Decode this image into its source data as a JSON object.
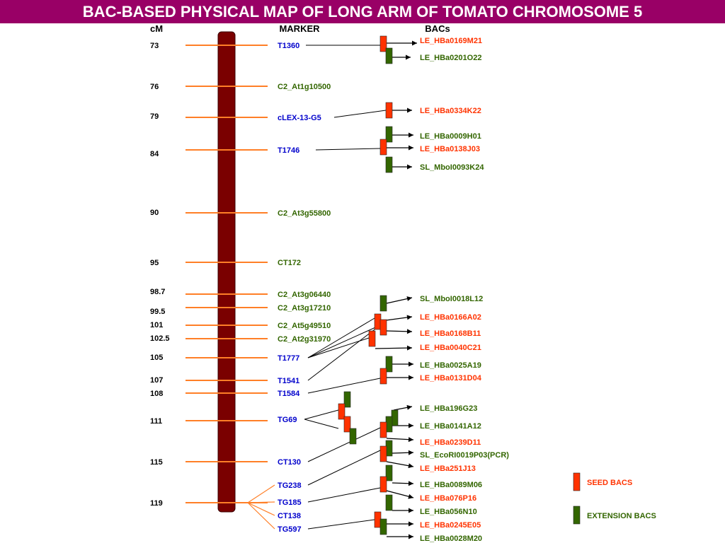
{
  "title": "BAC-BASED PHYSICAL MAP OF LONG ARM OF TOMATO CHROMOSOME 5",
  "headers": {
    "cm": "cM",
    "marker": "MARKER",
    "bacs": "BACs"
  },
  "colors": {
    "title_bg": "#990066",
    "chromosome": "#7a0000",
    "tick": "#ff7f27",
    "blue_marker": "#0000cc",
    "green_marker": "#336600",
    "seed": "#ff3300",
    "extension": "#336600",
    "red_label": "#ff3300"
  },
  "cm_positions": [
    "73",
    "76",
    "79",
    "84",
    "90",
    "95",
    "98.7",
    "99.5",
    "101",
    "102.5",
    "105",
    "107",
    "108",
    "111",
    "115",
    "119"
  ],
  "markers": [
    {
      "name": "T1360",
      "color": "blue"
    },
    {
      "name": "C2_At1g10500",
      "color": "green"
    },
    {
      "name": "cLEX-13-G5",
      "color": "blue"
    },
    {
      "name": "T1746",
      "color": "blue"
    },
    {
      "name": "C2_At3g55800",
      "color": "green"
    },
    {
      "name": "CT172",
      "color": "green"
    },
    {
      "name": "C2_At3g06440",
      "color": "green"
    },
    {
      "name": "C2_At3g17210",
      "color": "green"
    },
    {
      "name": "C2_At5g49510",
      "color": "green"
    },
    {
      "name": "C2_At2g31970",
      "color": "green"
    },
    {
      "name": "T1777",
      "color": "blue"
    },
    {
      "name": "T1541",
      "color": "blue"
    },
    {
      "name": "T1584",
      "color": "blue"
    },
    {
      "name": "TG69",
      "color": "blue"
    },
    {
      "name": "CT130",
      "color": "blue"
    },
    {
      "name": "TG238",
      "color": "blue"
    },
    {
      "name": "TG185",
      "color": "blue"
    },
    {
      "name": "CT138",
      "color": "blue"
    },
    {
      "name": "TG597",
      "color": "blue"
    }
  ],
  "bacs": [
    {
      "name": "LE_HBa0169M21",
      "type": "seed"
    },
    {
      "name": "LE_HBa0201O22",
      "type": "extension"
    },
    {
      "name": "LE_HBa0334K22",
      "type": "seed"
    },
    {
      "name": "LE_HBa0009H01",
      "type": "extension"
    },
    {
      "name": "LE_HBa0138J03",
      "type": "seed"
    },
    {
      "name": "SL_MboI0093K24",
      "type": "extension"
    },
    {
      "name": "SL_MboI0018L12",
      "type": "extension"
    },
    {
      "name": "LE_HBa0166A02",
      "type": "seed"
    },
    {
      "name": "LE_HBa0168B11",
      "type": "seed"
    },
    {
      "name": "LE_HBa0040C21",
      "type": "seed"
    },
    {
      "name": "LE_HBa0025A19",
      "type": "extension"
    },
    {
      "name": "LE_HBa0131D04",
      "type": "seed"
    },
    {
      "name": "LE_HBa196G23",
      "type": "extension"
    },
    {
      "name": "LE_HBa0141A12",
      "type": "extension"
    },
    {
      "name": "LE_HBa0239D11",
      "type": "seed"
    },
    {
      "name": "SL_EcoRI0019P03(PCR)",
      "type": "extension"
    },
    {
      "name": "LE_HBa251J13",
      "type": "seed"
    },
    {
      "name": "LE_HBa0089M06",
      "type": "extension"
    },
    {
      "name": "LE_HBa076P16",
      "type": "seed"
    },
    {
      "name": "LE_HBa056N10",
      "type": "extension"
    },
    {
      "name": "LE_HBa0245E05",
      "type": "seed"
    },
    {
      "name": "LE_HBa0028M20",
      "type": "extension"
    }
  ],
  "legend": [
    {
      "label": "SEED BACS",
      "type": "seed"
    },
    {
      "label": "EXTENSION BACS",
      "type": "extension"
    }
  ]
}
